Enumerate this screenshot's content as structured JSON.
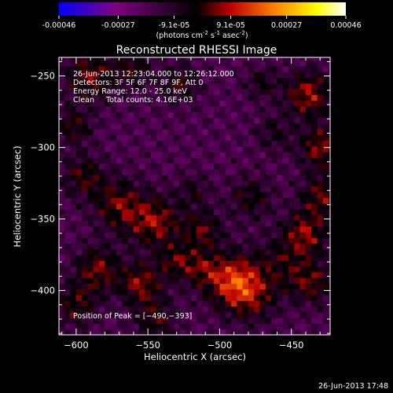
{
  "colorbar": {
    "ticks": [
      "-0.00046",
      "-0.00027",
      "-9.1e-05",
      "9.1e-05",
      "0.00027",
      "0.00046"
    ],
    "tick_values": [
      -0.00046,
      -0.00027,
      -9.1e-05,
      9.1e-05,
      0.00027,
      0.00046
    ],
    "range": [
      -0.00046,
      0.00046
    ],
    "units_text": "(photons cm",
    "units_exp1": "-2",
    "units_mid": " s",
    "units_exp2": "-1",
    "units_mid2": " asec",
    "units_exp3": "-2",
    "units_close": ")",
    "colors": [
      "#0000ff",
      "#800080",
      "#000000",
      "#c00000",
      "#ff8000",
      "#ffff00",
      "#ffffff"
    ]
  },
  "chart_data": {
    "type": "heatmap",
    "title": "Reconstructed RHESSI Image",
    "xlabel": "Heliocentric X (arcsec)",
    "ylabel": "Heliocentric Y (arcsec)",
    "xlim": [
      -612,
      -423
    ],
    "ylim": [
      -431,
      -237
    ],
    "xticks": [
      -600,
      -550,
      -500,
      -450
    ],
    "xtick_labels": [
      "−600",
      "−550",
      "−500",
      "−450"
    ],
    "yticks": [
      -250,
      -300,
      -350,
      -400
    ],
    "ytick_labels": [
      "−250",
      "−300",
      "−350",
      "−400"
    ],
    "info_lines": [
      "26-Jun-2013 12:23:04.000 to 12:26:12.000",
      "Detectors: 3F 5F 6F 7F 8F 9F, Att 0",
      "Energy Range: 12.0 - 25.0 keV",
      "Clean     Total counts: 4.16E+03"
    ],
    "peak_label": "Position of Peak = [−490,−393]",
    "peak_position": [
      -490,
      -393
    ],
    "peak_value": 0.00046
  },
  "footer": {
    "timestamp": "26-Jun-2013 17:48"
  }
}
